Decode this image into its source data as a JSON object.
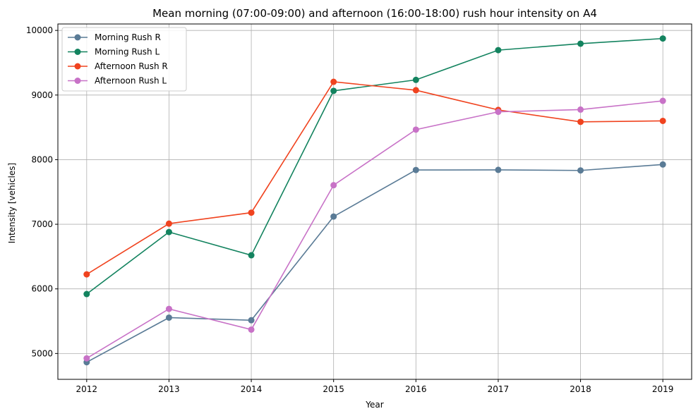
{
  "chart_data": {
    "type": "line",
    "title": "Mean morning (07:00-09:00) and afternoon (16:00-18:00) rush hour intensity on A4",
    "xlabel": "Year",
    "ylabel": "Intensity [vehicles]",
    "x": [
      "2012",
      "2013",
      "2014",
      "2015",
      "2016",
      "2017",
      "2018",
      "2019"
    ],
    "xlim": [
      2011.65,
      2019.35
    ],
    "ylim": [
      4600,
      10100
    ],
    "yticks": [
      5000,
      6000,
      7000,
      8000,
      9000,
      10000
    ],
    "grid": true,
    "legend_position": "top-left",
    "series": [
      {
        "name": "Morning Rush R",
        "color": "#5a7b96",
        "values": [
          4865,
          5555,
          5515,
          7120,
          7840,
          7842,
          7833,
          7925
        ]
      },
      {
        "name": "Morning Rush L",
        "color": "#13835f",
        "values": [
          5920,
          6880,
          6520,
          9065,
          9235,
          9695,
          9795,
          9875
        ]
      },
      {
        "name": "Afternoon Rush R",
        "color": "#f0431f",
        "values": [
          6225,
          7010,
          7180,
          9205,
          9075,
          8770,
          8585,
          8600
        ]
      },
      {
        "name": "Afternoon Rush L",
        "color": "#c872c7",
        "values": [
          4925,
          5690,
          5370,
          7605,
          8465,
          8740,
          8775,
          8910
        ]
      }
    ]
  }
}
